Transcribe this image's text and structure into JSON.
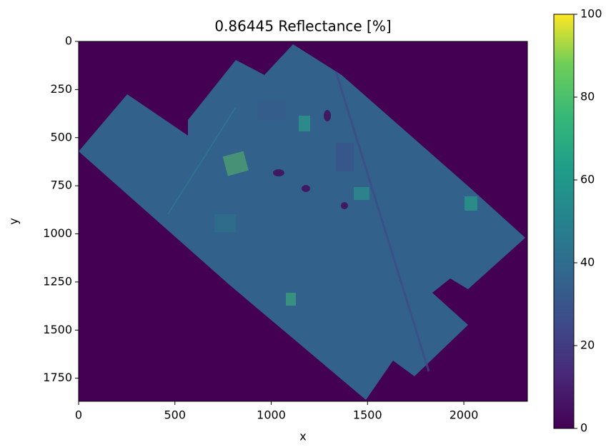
{
  "chart_data": {
    "type": "heatmap",
    "title": "0.86445 Reflectance [%]",
    "x_label": "x",
    "y_label": "y",
    "xlim": [
      0,
      2330
    ],
    "ylim": [
      1870,
      0
    ],
    "xticks": [
      0,
      500,
      1000,
      1500,
      2000
    ],
    "yticks": [
      0,
      250,
      500,
      750,
      1000,
      1250,
      1500,
      1750
    ],
    "colormap": "viridis",
    "clim": [
      0,
      100
    ],
    "colorbar_ticks": [
      0,
      20,
      40,
      60,
      80,
      100
    ]
  }
}
